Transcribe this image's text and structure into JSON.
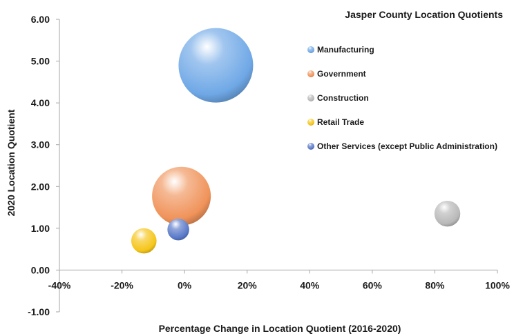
{
  "chart_data": {
    "type": "bubble",
    "title": "Jasper County Location Quotients",
    "xlabel": "Percentage Change in Location Quotient (2016-2020)",
    "ylabel": "2020 Location Quotient",
    "xlim": [
      -0.4,
      1.0
    ],
    "ylim": [
      -1.0,
      6.0
    ],
    "x_ticks": [
      "-40%",
      "-20%",
      "0%",
      "20%",
      "40%",
      "60%",
      "80%",
      "100%"
    ],
    "y_ticks": [
      "-1.00",
      "0.00",
      "1.00",
      "2.00",
      "3.00",
      "4.00",
      "5.00",
      "6.00"
    ],
    "legend_position": "top-right",
    "grid": false,
    "series": [
      {
        "name": "Manufacturing",
        "x": 0.1,
        "y": 4.9,
        "size": 100,
        "color": "#6fa8e6"
      },
      {
        "name": "Government",
        "x": -0.01,
        "y": 1.77,
        "size": 62,
        "color": "#f0935a"
      },
      {
        "name": "Construction",
        "x": 0.84,
        "y": 1.35,
        "size": 12,
        "color": "#b8b8b8"
      },
      {
        "name": "Retail Trade",
        "x": -0.13,
        "y": 0.7,
        "size": 11.5,
        "color": "#f5c518"
      },
      {
        "name": "Other Services (except Public Administration)",
        "x": -0.02,
        "y": 0.97,
        "size": 8.5,
        "color": "#5878c8"
      }
    ]
  }
}
